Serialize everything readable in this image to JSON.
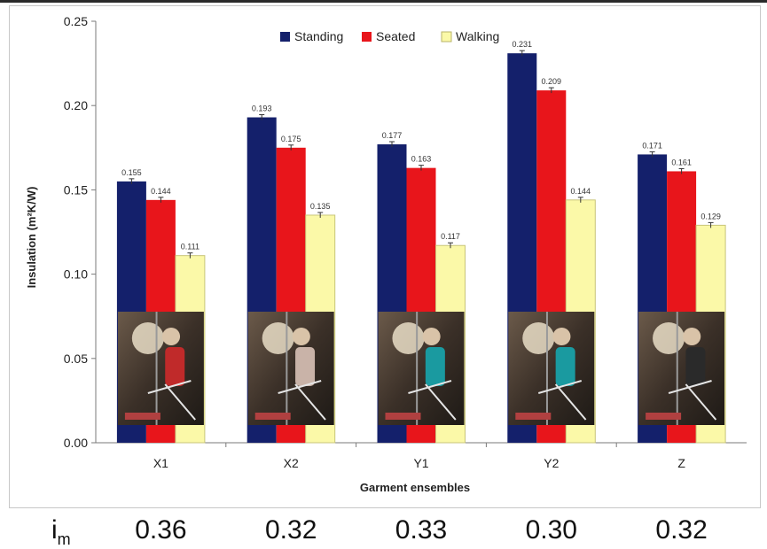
{
  "chart_data": {
    "type": "bar",
    "title": "",
    "xlabel": "Garment ensembles",
    "ylabel": "Insulation (m²K/W)",
    "ylim": [
      0,
      0.25
    ],
    "yticks": [
      "0.00",
      "0.05",
      "0.10",
      "0.15",
      "0.20",
      "0.25"
    ],
    "categories": [
      "X1",
      "X2",
      "Y1",
      "Y2",
      "Z"
    ],
    "legend_position": "top",
    "series": [
      {
        "name": "Standing",
        "color": "#14206b",
        "values": [
          0.155,
          0.193,
          0.177,
          0.231,
          0.171
        ],
        "labels": [
          "0.155",
          "0.193",
          "0.177",
          "0.231",
          "0.171"
        ]
      },
      {
        "name": "Seated",
        "color": "#e8151b",
        "values": [
          0.144,
          0.175,
          0.163,
          0.209,
          0.161
        ],
        "labels": [
          "0.144",
          "0.175",
          "0.163",
          "0.209",
          "0.161"
        ]
      },
      {
        "name": "Walking",
        "color": "#fbf9a8",
        "values": [
          0.111,
          0.135,
          0.117,
          0.144,
          0.129
        ],
        "labels": [
          "0.111",
          "0.135",
          "0.117",
          "0.144",
          "0.129"
        ]
      }
    ],
    "error_bars": true,
    "grid": false
  },
  "im_row": {
    "label": "i",
    "label_sub": "m",
    "values": [
      "0.36",
      "0.32",
      "0.33",
      "0.30",
      "0.32"
    ]
  },
  "photo_insets": {
    "description_icons": [
      "mannequin-photo-icon"
    ]
  }
}
